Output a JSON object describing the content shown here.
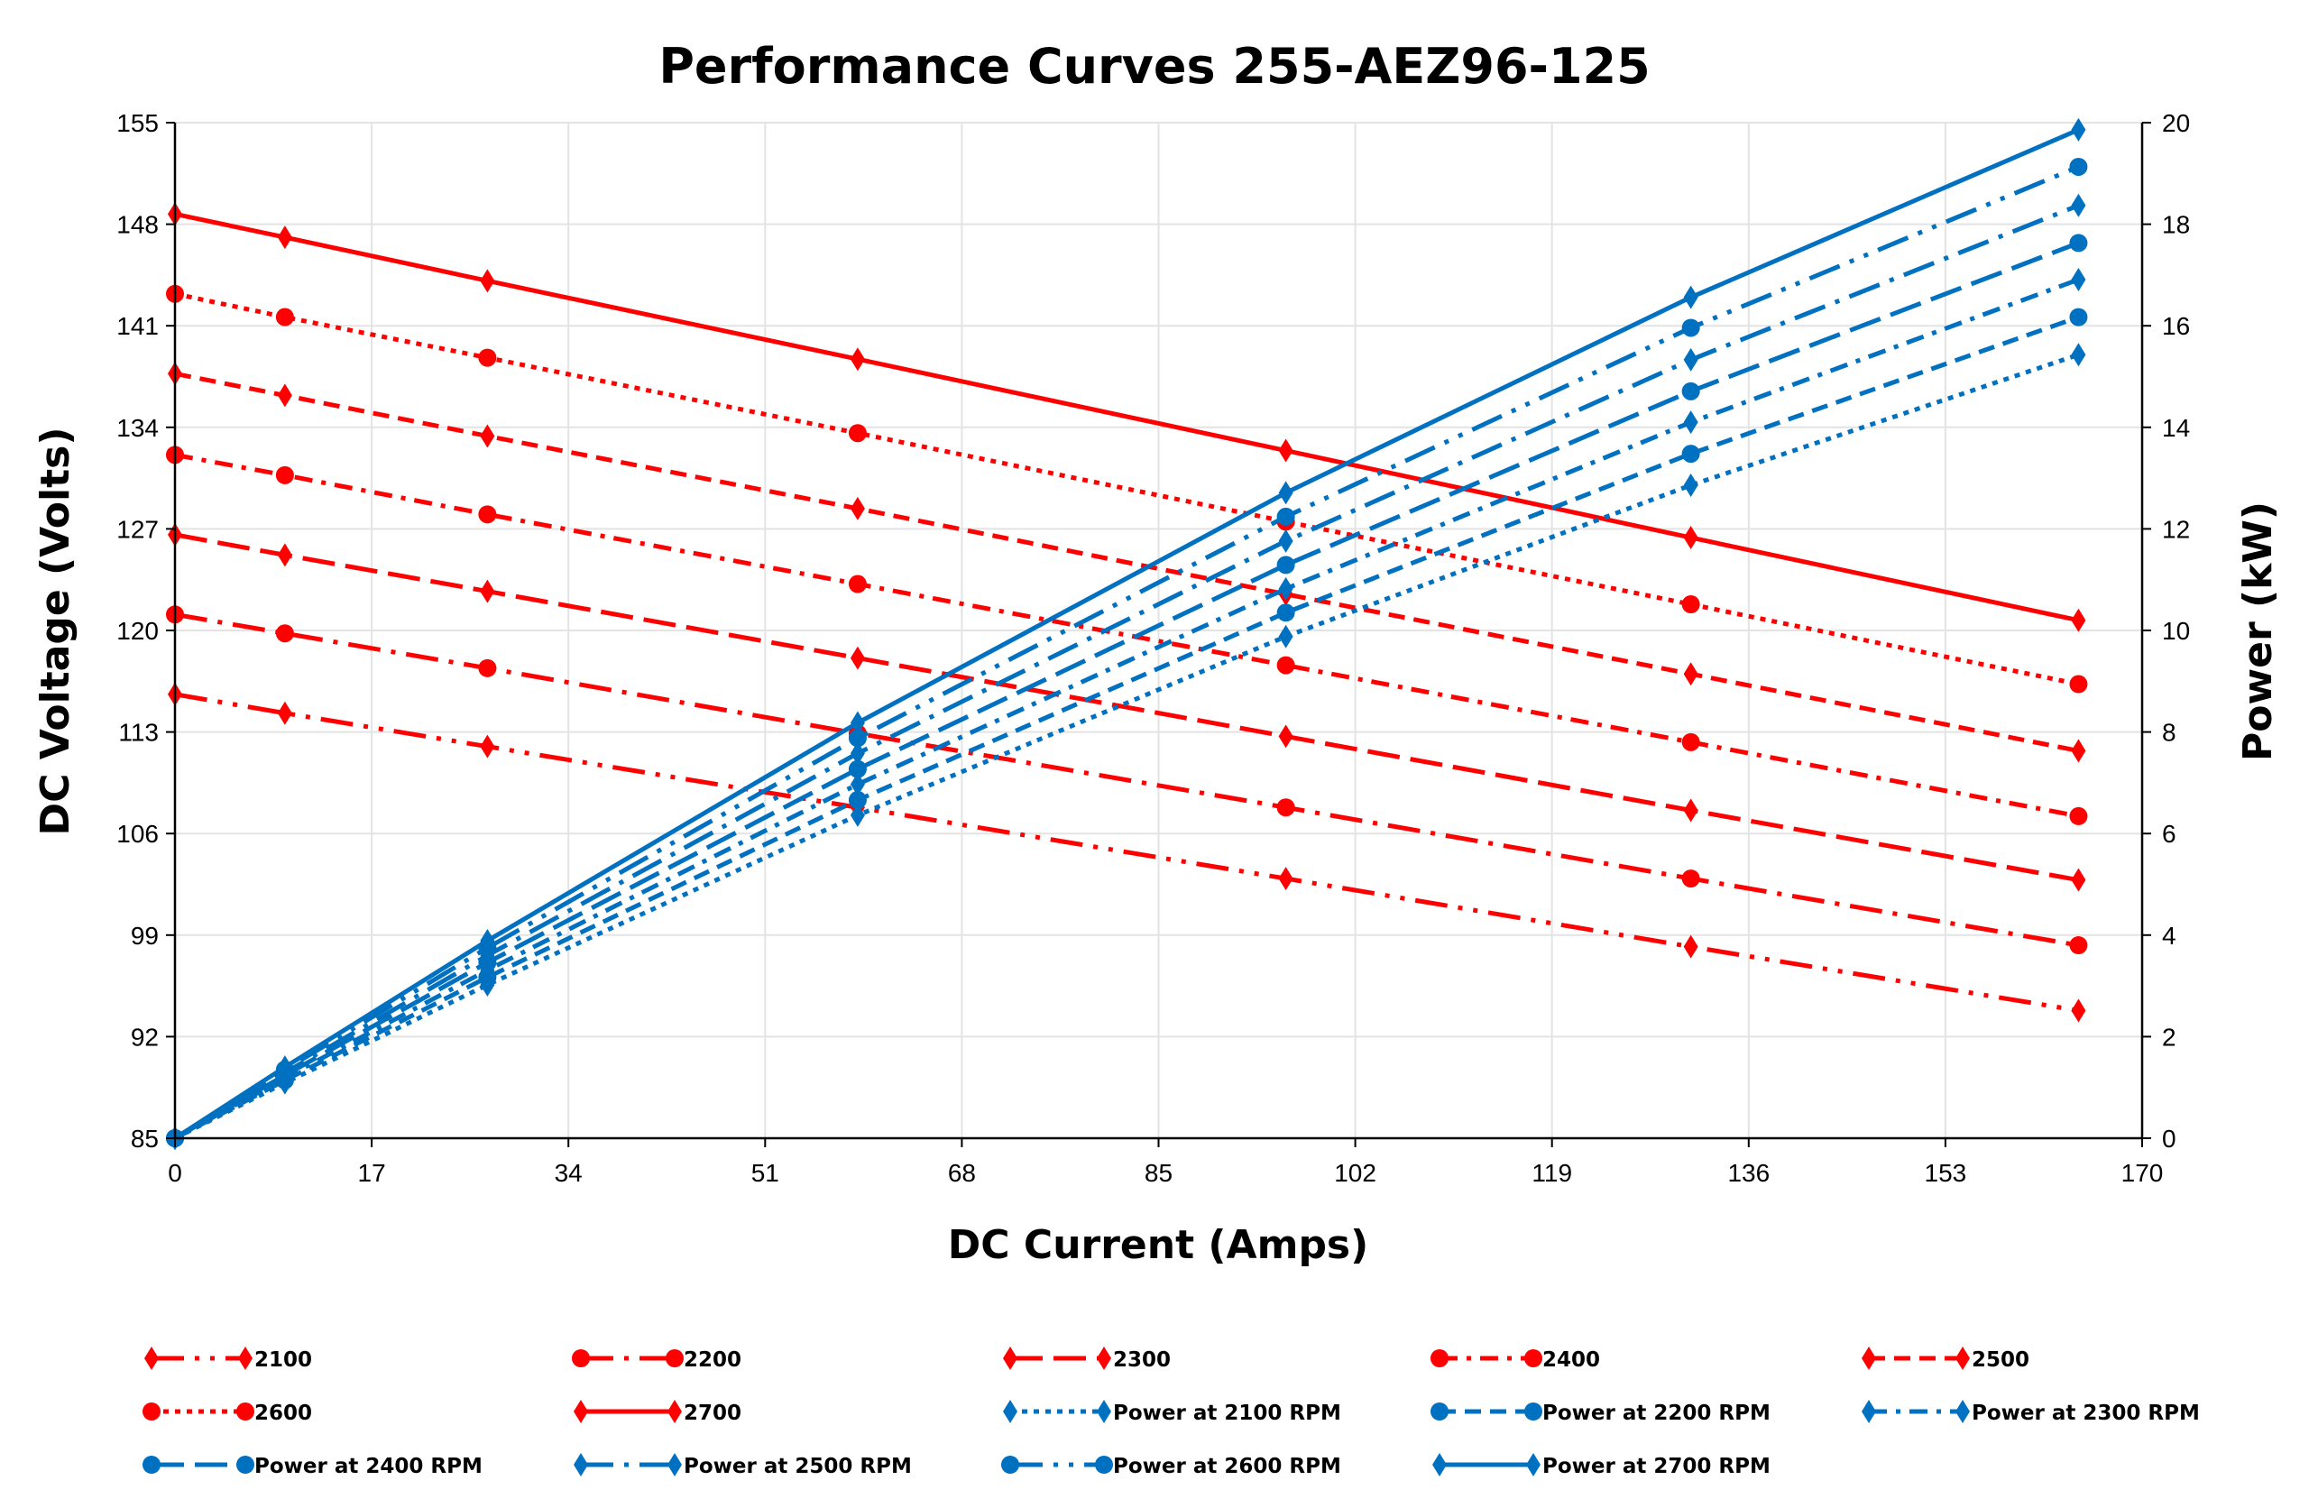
{
  "chart_data": {
    "type": "line",
    "title": "Performance Curves 255-AEZ96-125",
    "xlabel": "DC Current (Amps)",
    "ylabel": "DC Voltage (Volts)",
    "y2label": "Power (kW)",
    "xlim": [
      0,
      170
    ],
    "ylim": [
      85,
      155
    ],
    "y2lim": [
      0,
      20
    ],
    "xticks": [
      0,
      17,
      34,
      51,
      68,
      85,
      102,
      119,
      136,
      153,
      170
    ],
    "yticks": [
      85,
      92,
      99,
      106,
      113,
      120,
      127,
      134,
      141,
      148,
      155
    ],
    "y2ticks": [
      0,
      2,
      4,
      6,
      8,
      10,
      12,
      14,
      16,
      18,
      20
    ],
    "grid": true,
    "legend_position": "bottom",
    "colors": {
      "voltage": "#ff0000",
      "power": "#0070c0"
    },
    "x": [
      0,
      9.5,
      27,
      59,
      96,
      131,
      164.5
    ],
    "series": [
      {
        "name": "2100",
        "axis": "left",
        "marker": "diamond",
        "dash": "longdashdotdot",
        "values": [
          115.6,
          114.3,
          112.0,
          107.8,
          102.9,
          98.2,
          93.8
        ]
      },
      {
        "name": "2200",
        "axis": "left",
        "marker": "circle",
        "dash": "longdashdot",
        "values": [
          121.1,
          119.8,
          117.4,
          112.9,
          107.8,
          102.9,
          98.3
        ]
      },
      {
        "name": "2300",
        "axis": "left",
        "marker": "diamond",
        "dash": "longdash",
        "values": [
          126.6,
          125.2,
          122.7,
          118.1,
          112.7,
          107.6,
          102.8
        ]
      },
      {
        "name": "2400",
        "axis": "left",
        "marker": "circle",
        "dash": "dashdot",
        "values": [
          132.1,
          130.7,
          128.0,
          123.2,
          117.6,
          112.3,
          107.2
        ]
      },
      {
        "name": "2500",
        "axis": "left",
        "marker": "diamond",
        "dash": "dash",
        "values": [
          137.7,
          136.2,
          133.4,
          128.4,
          122.5,
          117.0,
          111.7
        ]
      },
      {
        "name": "2600",
        "axis": "left",
        "marker": "circle",
        "dash": "dot",
        "values": [
          143.2,
          141.6,
          138.8,
          133.6,
          127.5,
          121.8,
          116.3
        ]
      },
      {
        "name": "2700",
        "axis": "left",
        "marker": "diamond",
        "dash": "solid",
        "values": [
          148.7,
          147.1,
          144.1,
          138.7,
          132.4,
          126.4,
          120.7
        ]
      },
      {
        "name": "Power at 2100 RPM",
        "axis": "right",
        "marker": "diamond",
        "dash": "dot",
        "values": [
          0,
          1.09,
          3.02,
          6.36,
          9.88,
          12.86,
          15.43
        ]
      },
      {
        "name": "Power at 2200 RPM",
        "axis": "right",
        "marker": "circle",
        "dash": "dash",
        "values": [
          0,
          1.14,
          3.17,
          6.66,
          10.35,
          13.48,
          16.17
        ]
      },
      {
        "name": "Power at 2300 RPM",
        "axis": "right",
        "marker": "diamond",
        "dash": "dashdot",
        "values": [
          0,
          1.19,
          3.31,
          6.97,
          10.82,
          14.1,
          16.91
        ]
      },
      {
        "name": "Power at 2400 RPM",
        "axis": "right",
        "marker": "circle",
        "dash": "longdash",
        "values": [
          0,
          1.24,
          3.46,
          7.27,
          11.29,
          14.71,
          17.63
        ]
      },
      {
        "name": "Power at 2500 RPM",
        "axis": "right",
        "marker": "diamond",
        "dash": "longdashdot",
        "values": [
          0,
          1.29,
          3.6,
          7.58,
          11.76,
          15.33,
          18.37
        ]
      },
      {
        "name": "Power at 2600 RPM",
        "axis": "right",
        "marker": "circle",
        "dash": "longdashdotdot",
        "values": [
          0,
          1.35,
          3.75,
          7.88,
          12.24,
          15.96,
          19.13
        ]
      },
      {
        "name": "Power at 2700 RPM",
        "axis": "right",
        "marker": "diamond",
        "dash": "solid",
        "values": [
          0,
          1.4,
          3.89,
          8.18,
          12.71,
          16.56,
          19.86
        ]
      }
    ]
  }
}
